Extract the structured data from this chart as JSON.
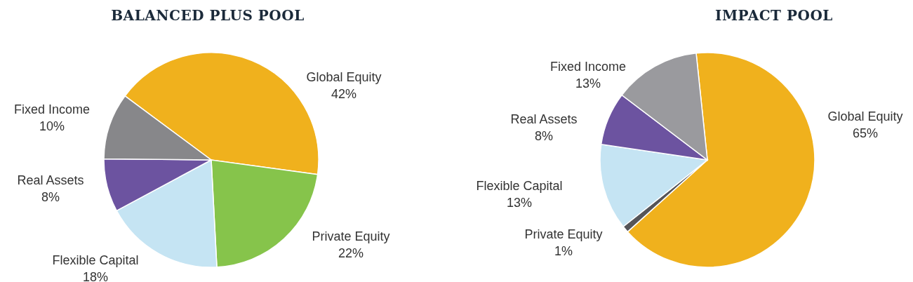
{
  "chart_data": [
    {
      "type": "pie",
      "title": "BALANCED PLUS POOL",
      "categories": [
        "Global Equity",
        "Private Equity",
        "Flexible Capital",
        "Real Assets",
        "Fixed Income"
      ],
      "values": [
        42,
        22,
        18,
        8,
        10
      ],
      "colors": [
        "#f0b11d",
        "#86c44b",
        "#c5e4f3",
        "#6c53a0",
        "#87878a"
      ],
      "value_labels": [
        "42%",
        "22%",
        "18%",
        "8%",
        "10%"
      ]
    },
    {
      "type": "pie",
      "title": "IMPACT POOL",
      "categories": [
        "Global Equity",
        "Private Equity",
        "Flexible Capital",
        "Real Assets",
        "Fixed Income"
      ],
      "values": [
        65,
        1,
        13,
        8,
        13
      ],
      "colors": [
        "#f0b11d",
        "#555559",
        "#c5e4f3",
        "#6c53a0",
        "#9a9a9e"
      ],
      "value_labels": [
        "65%",
        "1%",
        "13%",
        "8%",
        "13%"
      ]
    }
  ]
}
